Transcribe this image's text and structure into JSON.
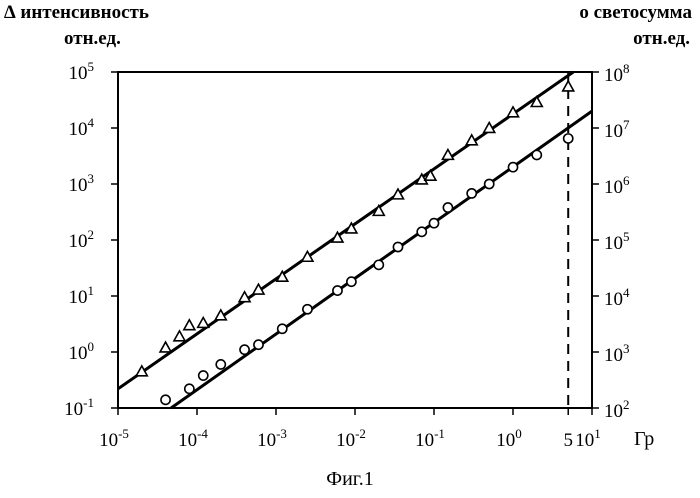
{
  "chart_data": {
    "type": "scatter",
    "caption": "Фиг.1",
    "x_axis": {
      "scale": "log",
      "range": [
        1e-05,
        10
      ],
      "unit_label": "Гр",
      "ticks": [
        {
          "value": 1e-05,
          "base": "10",
          "exp": "-5"
        },
        {
          "value": 0.0001,
          "base": "10",
          "exp": "-4"
        },
        {
          "value": 0.001,
          "base": "10",
          "exp": "-3"
        },
        {
          "value": 0.01,
          "base": "10",
          "exp": "-2"
        },
        {
          "value": 0.1,
          "base": "10",
          "exp": "-1"
        },
        {
          "value": 1,
          "base": "10",
          "exp": "0"
        },
        {
          "value": 5,
          "base": "5",
          "exp": ""
        },
        {
          "value": 10,
          "base": "10",
          "exp": "1"
        }
      ],
      "marker_line_at": 5
    },
    "y_left": {
      "scale": "log",
      "range": [
        0.1,
        100000
      ],
      "label_line1": "интенсивность",
      "label_line2": "отн.ед.",
      "ticks": [
        {
          "value": 0.1,
          "base": "10",
          "exp": "-1"
        },
        {
          "value": 1,
          "base": "10",
          "exp": "0"
        },
        {
          "value": 10,
          "base": "10",
          "exp": "1"
        },
        {
          "value": 100,
          "base": "10",
          "exp": "2"
        },
        {
          "value": 1000,
          "base": "10",
          "exp": "3"
        },
        {
          "value": 10000,
          "base": "10",
          "exp": "4"
        },
        {
          "value": 100000,
          "base": "10",
          "exp": "5"
        }
      ]
    },
    "y_right": {
      "scale": "log",
      "range": [
        100,
        100000000
      ],
      "label_line1": "светосумма",
      "label_line2": "отн.ед.",
      "ticks": [
        {
          "value": 100,
          "base": "10",
          "exp": "2"
        },
        {
          "value": 1000,
          "base": "10",
          "exp": "3"
        },
        {
          "value": 10000,
          "base": "10",
          "exp": "4"
        },
        {
          "value": 100000,
          "base": "10",
          "exp": "5"
        },
        {
          "value": 1000000,
          "base": "10",
          "exp": "6"
        },
        {
          "value": 10000000,
          "base": "10",
          "exp": "7"
        },
        {
          "value": 100000000,
          "base": "10",
          "exp": "8"
        }
      ]
    },
    "series": [
      {
        "marker": "triangle",
        "legend_symbol": "∆",
        "axis": "left",
        "points": [
          {
            "x": 2e-05,
            "y": 0.45
          },
          {
            "x": 4e-05,
            "y": 1.2
          },
          {
            "x": 6e-05,
            "y": 1.9
          },
          {
            "x": 8e-05,
            "y": 3.0
          },
          {
            "x": 0.00012,
            "y": 3.3
          },
          {
            "x": 0.0002,
            "y": 4.5
          },
          {
            "x": 0.0004,
            "y": 9.5
          },
          {
            "x": 0.0006,
            "y": 13
          },
          {
            "x": 0.0012,
            "y": 22
          },
          {
            "x": 0.0025,
            "y": 50
          },
          {
            "x": 0.006,
            "y": 110
          },
          {
            "x": 0.009,
            "y": 160
          },
          {
            "x": 0.02,
            "y": 330
          },
          {
            "x": 0.035,
            "y": 650
          },
          {
            "x": 0.07,
            "y": 1200
          },
          {
            "x": 0.09,
            "y": 1400
          },
          {
            "x": 0.15,
            "y": 3300
          },
          {
            "x": 0.3,
            "y": 6000
          },
          {
            "x": 0.5,
            "y": 10000
          },
          {
            "x": 1,
            "y": 19000
          },
          {
            "x": 2,
            "y": 29000
          },
          {
            "x": 5,
            "y": 55000
          }
        ],
        "fit": [
          {
            "x": 1e-05,
            "y": 0.22
          },
          {
            "x": 5.8,
            "y": 100000
          }
        ]
      },
      {
        "marker": "circle",
        "legend_symbol": "o",
        "axis": "right",
        "points": [
          {
            "x": 4e-05,
            "y": 140
          },
          {
            "x": 8e-05,
            "y": 220
          },
          {
            "x": 0.00012,
            "y": 380
          },
          {
            "x": 0.0002,
            "y": 600
          },
          {
            "x": 0.0004,
            "y": 1100
          },
          {
            "x": 0.0006,
            "y": 1350
          },
          {
            "x": 0.0012,
            "y": 2600
          },
          {
            "x": 0.0025,
            "y": 5800
          },
          {
            "x": 0.006,
            "y": 12500
          },
          {
            "x": 0.009,
            "y": 18000
          },
          {
            "x": 0.02,
            "y": 36000
          },
          {
            "x": 0.035,
            "y": 75000
          },
          {
            "x": 0.07,
            "y": 140000
          },
          {
            "x": 0.1,
            "y": 200000
          },
          {
            "x": 0.15,
            "y": 380000
          },
          {
            "x": 0.3,
            "y": 680000
          },
          {
            "x": 0.5,
            "y": 1000000
          },
          {
            "x": 1,
            "y": 2000000
          },
          {
            "x": 2,
            "y": 3300000
          },
          {
            "x": 5,
            "y": 6500000
          }
        ],
        "fit": [
          {
            "x": 4.7e-05,
            "y": 100
          },
          {
            "x": 10,
            "y": 20000000
          }
        ]
      }
    ]
  }
}
